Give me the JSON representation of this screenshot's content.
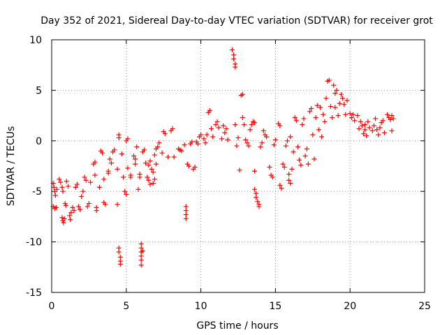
{
  "chart_data": {
    "type": "scatter",
    "title": "Day 352 of 2021, Sidereal Day-to-day VTEC variation (SDTVAR) for receiver grot",
    "xlabel": "GPS time / hours",
    "ylabel": "SDTVAR / TECUs",
    "xlim": [
      0,
      25
    ],
    "ylim": [
      -15,
      10
    ],
    "x_ticks": [
      0,
      5,
      10,
      15,
      20,
      25
    ],
    "y_ticks": [
      -15,
      -10,
      -5,
      0,
      5,
      10
    ],
    "x_tick_labels": [
      "0",
      "5",
      "10",
      "15",
      "20",
      "25"
    ],
    "y_tick_labels": [
      "-15",
      "-10",
      "-5",
      "0",
      "5",
      "10"
    ],
    "grid": true,
    "marker": "+",
    "color": "#ff0000",
    "series": [
      {
        "name": "SDTVAR",
        "points": [
          [
            0.1,
            -4.2
          ],
          [
            0.15,
            -4.6
          ],
          [
            0.2,
            -5.0
          ],
          [
            0.25,
            -5.4
          ],
          [
            0.1,
            -6.5
          ],
          [
            0.2,
            -6.7
          ],
          [
            0.3,
            -6.6
          ],
          [
            0.35,
            -4.8
          ],
          [
            0.5,
            -3.8
          ],
          [
            0.6,
            -4.1
          ],
          [
            0.7,
            -4.6
          ],
          [
            0.75,
            -5.0
          ],
          [
            0.7,
            -7.6
          ],
          [
            0.75,
            -7.9
          ],
          [
            0.8,
            -8.1
          ],
          [
            0.85,
            -7.7
          ],
          [
            0.9,
            -6.2
          ],
          [
            0.95,
            -6.4
          ],
          [
            1.0,
            -4.0
          ],
          [
            1.1,
            -4.5
          ],
          [
            1.2,
            -7.4
          ],
          [
            1.25,
            -7.8
          ],
          [
            1.3,
            -7.1
          ],
          [
            1.4,
            -6.6
          ],
          [
            1.5,
            -6.9
          ],
          [
            1.6,
            -4.6
          ],
          [
            1.7,
            -4.3
          ],
          [
            1.8,
            -6.5
          ],
          [
            1.9,
            -6.8
          ],
          [
            2.0,
            -5.5
          ],
          [
            2.1,
            -5.0
          ],
          [
            2.2,
            -3.6
          ],
          [
            2.3,
            -3.9
          ],
          [
            2.4,
            -6.5
          ],
          [
            2.5,
            -6.2
          ],
          [
            2.6,
            -4.1
          ],
          [
            2.8,
            -2.3
          ],
          [
            2.9,
            -2.1
          ],
          [
            2.9,
            -3.4
          ],
          [
            3.0,
            -6.6
          ],
          [
            3.0,
            -6.9
          ],
          [
            3.2,
            -4.6
          ],
          [
            3.3,
            -1.0
          ],
          [
            3.4,
            -1.2
          ],
          [
            3.5,
            -3.8
          ],
          [
            3.5,
            -6.1
          ],
          [
            3.6,
            -6.3
          ],
          [
            3.8,
            -3.0
          ],
          [
            3.8,
            -3.2
          ],
          [
            3.9,
            -1.8
          ],
          [
            4.0,
            -2.2
          ],
          [
            4.1,
            -1.1
          ],
          [
            4.2,
            -0.9
          ],
          [
            4.4,
            -2.8
          ],
          [
            4.4,
            -6.3
          ],
          [
            4.5,
            0.6
          ],
          [
            4.5,
            0.3
          ],
          [
            4.5,
            -10.6
          ],
          [
            4.5,
            -11.0
          ],
          [
            4.6,
            -11.5
          ],
          [
            4.6,
            -11.9
          ],
          [
            4.6,
            -12.2
          ],
          [
            4.7,
            -1.3
          ],
          [
            4.8,
            -3.6
          ],
          [
            4.9,
            -5.0
          ],
          [
            5.0,
            -5.3
          ],
          [
            5.0,
            0.0
          ],
          [
            5.1,
            0.2
          ],
          [
            5.1,
            -2.7
          ],
          [
            5.3,
            -3.4
          ],
          [
            5.3,
            -3.6
          ],
          [
            5.5,
            -1.5
          ],
          [
            5.6,
            -1.8
          ],
          [
            5.6,
            -2.3
          ],
          [
            5.7,
            -0.6
          ],
          [
            5.8,
            -4.8
          ],
          [
            5.9,
            -3.3
          ],
          [
            5.9,
            -3.6
          ],
          [
            6.0,
            -10.2
          ],
          [
            6.0,
            -10.6
          ],
          [
            6.0,
            -11.0
          ],
          [
            6.0,
            -11.4
          ],
          [
            6.0,
            -11.8
          ],
          [
            6.0,
            -12.3
          ],
          [
            6.1,
            -10.9
          ],
          [
            6.1,
            -1.1
          ],
          [
            6.2,
            -0.9
          ],
          [
            6.3,
            -2.2
          ],
          [
            6.4,
            -3.6
          ],
          [
            6.5,
            -3.9
          ],
          [
            6.5,
            -2.4
          ],
          [
            6.6,
            -4.3
          ],
          [
            6.6,
            -2.0
          ],
          [
            6.7,
            -2.8
          ],
          [
            6.8,
            -3.1
          ],
          [
            6.8,
            -4.2
          ],
          [
            6.9,
            -1.4
          ],
          [
            6.9,
            -3.8
          ],
          [
            7.0,
            -2.3
          ],
          [
            7.0,
            -0.8
          ],
          [
            7.1,
            -0.6
          ],
          [
            7.2,
            -0.2
          ],
          [
            7.4,
            -1.2
          ],
          [
            7.5,
            0.9
          ],
          [
            7.6,
            0.7
          ],
          [
            7.8,
            -1.6
          ],
          [
            8.0,
            1.0
          ],
          [
            8.1,
            1.2
          ],
          [
            8.2,
            -1.6
          ],
          [
            8.5,
            -0.8
          ],
          [
            8.6,
            -0.9
          ],
          [
            8.7,
            -1.0
          ],
          [
            8.9,
            -0.4
          ],
          [
            9.0,
            -6.5
          ],
          [
            9.0,
            -6.9
          ],
          [
            9.0,
            -7.3
          ],
          [
            9.0,
            -7.7
          ],
          [
            9.1,
            -2.3
          ],
          [
            9.2,
            -2.5
          ],
          [
            9.3,
            -0.3
          ],
          [
            9.4,
            -0.1
          ],
          [
            9.5,
            -2.8
          ],
          [
            9.6,
            -2.6
          ],
          [
            9.7,
            -0.1
          ],
          [
            9.8,
            -0.3
          ],
          [
            9.9,
            0.4
          ],
          [
            10.0,
            0.6
          ],
          [
            10.2,
            0.2
          ],
          [
            10.3,
            -0.2
          ],
          [
            10.4,
            0.6
          ],
          [
            10.5,
            2.8
          ],
          [
            10.6,
            3.0
          ],
          [
            10.7,
            1.2
          ],
          [
            10.8,
            0.4
          ],
          [
            11.0,
            1.6
          ],
          [
            11.1,
            1.9
          ],
          [
            11.2,
            1.3
          ],
          [
            11.4,
            0.2
          ],
          [
            11.5,
            1.5
          ],
          [
            11.6,
            0.8
          ],
          [
            11.7,
            1.2
          ],
          [
            11.8,
            0.1
          ],
          [
            12.1,
            9.0
          ],
          [
            12.2,
            8.5
          ],
          [
            12.2,
            8.1
          ],
          [
            12.3,
            7.6
          ],
          [
            12.3,
            7.3
          ],
          [
            12.3,
            1.6
          ],
          [
            12.4,
            -0.5
          ],
          [
            12.5,
            0.3
          ],
          [
            12.6,
            -2.9
          ],
          [
            12.7,
            4.5
          ],
          [
            12.8,
            4.6
          ],
          [
            12.8,
            2.3
          ],
          [
            12.9,
            1.6
          ],
          [
            13.0,
            0.1
          ],
          [
            13.1,
            -0.2
          ],
          [
            13.2,
            -0.5
          ],
          [
            13.3,
            1.1
          ],
          [
            13.4,
            1.6
          ],
          [
            13.5,
            1.9
          ],
          [
            13.6,
            1.8
          ],
          [
            13.6,
            -3.0
          ],
          [
            13.6,
            -4.8
          ],
          [
            13.7,
            -5.2
          ],
          [
            13.7,
            -5.6
          ],
          [
            13.8,
            -6.0
          ],
          [
            13.9,
            -6.3
          ],
          [
            13.9,
            -6.5
          ],
          [
            14.0,
            -0.6
          ],
          [
            14.1,
            -0.2
          ],
          [
            14.2,
            1.0
          ],
          [
            14.3,
            0.6
          ],
          [
            14.4,
            0.4
          ],
          [
            14.6,
            -2.6
          ],
          [
            14.7,
            -3.4
          ],
          [
            14.8,
            -3.6
          ],
          [
            14.9,
            -0.4
          ],
          [
            15.0,
            0.1
          ],
          [
            15.2,
            1.7
          ],
          [
            15.3,
            1.5
          ],
          [
            15.3,
            -4.4
          ],
          [
            15.4,
            -4.7
          ],
          [
            15.5,
            -2.3
          ],
          [
            15.6,
            -2.6
          ],
          [
            15.7,
            -0.5
          ],
          [
            15.8,
            0.0
          ],
          [
            15.9,
            -3.3
          ],
          [
            15.9,
            -3.9
          ],
          [
            16.0,
            -4.2
          ],
          [
            16.0,
            0.4
          ],
          [
            16.1,
            -2.8
          ],
          [
            16.2,
            -1.1
          ],
          [
            16.3,
            2.3
          ],
          [
            16.4,
            2.0
          ],
          [
            16.5,
            -0.6
          ],
          [
            16.6,
            -1.9
          ],
          [
            16.7,
            -2.4
          ],
          [
            16.8,
            1.6
          ],
          [
            16.9,
            2.2
          ],
          [
            17.0,
            -1.5
          ],
          [
            17.1,
            -0.8
          ],
          [
            17.2,
            -2.3
          ],
          [
            17.3,
            2.9
          ],
          [
            17.4,
            3.2
          ],
          [
            17.5,
            0.6
          ],
          [
            17.6,
            -1.8
          ],
          [
            17.7,
            2.3
          ],
          [
            17.8,
            3.5
          ],
          [
            17.9,
            1.1
          ],
          [
            18.0,
            3.3
          ],
          [
            18.1,
            0.4
          ],
          [
            18.2,
            2.6
          ],
          [
            18.3,
            1.9
          ],
          [
            18.4,
            4.2
          ],
          [
            18.5,
            5.9
          ],
          [
            18.6,
            6.0
          ],
          [
            18.7,
            3.4
          ],
          [
            18.8,
            2.3
          ],
          [
            18.9,
            5.5
          ],
          [
            19.0,
            4.7
          ],
          [
            19.0,
            3.3
          ],
          [
            19.1,
            5.0
          ],
          [
            19.2,
            2.5
          ],
          [
            19.3,
            3.7
          ],
          [
            19.4,
            4.6
          ],
          [
            19.5,
            4.2
          ],
          [
            19.6,
            3.6
          ],
          [
            19.7,
            2.6
          ],
          [
            19.8,
            4.0
          ],
          [
            20.0,
            2.7
          ],
          [
            20.1,
            2.3
          ],
          [
            20.2,
            2.6
          ],
          [
            20.3,
            2.0
          ],
          [
            20.5,
            2.5
          ],
          [
            20.6,
            1.2
          ],
          [
            20.7,
            1.9
          ],
          [
            20.8,
            1.5
          ],
          [
            20.9,
            0.7
          ],
          [
            21.0,
            1.6
          ],
          [
            21.0,
            1.1
          ],
          [
            21.1,
            0.5
          ],
          [
            21.2,
            1.9
          ],
          [
            21.3,
            1.3
          ],
          [
            21.5,
            1.0
          ],
          [
            21.6,
            1.5
          ],
          [
            21.7,
            2.2
          ],
          [
            21.8,
            1.1
          ],
          [
            21.9,
            0.6
          ],
          [
            22.0,
            1.3
          ],
          [
            22.1,
            1.8
          ],
          [
            22.2,
            2.0
          ],
          [
            22.3,
            0.8
          ],
          [
            22.5,
            2.6
          ],
          [
            22.6,
            2.3
          ],
          [
            22.7,
            2.1
          ],
          [
            22.8,
            1.0
          ],
          [
            22.8,
            2.5
          ],
          [
            22.9,
            2.2
          ]
        ]
      }
    ]
  }
}
